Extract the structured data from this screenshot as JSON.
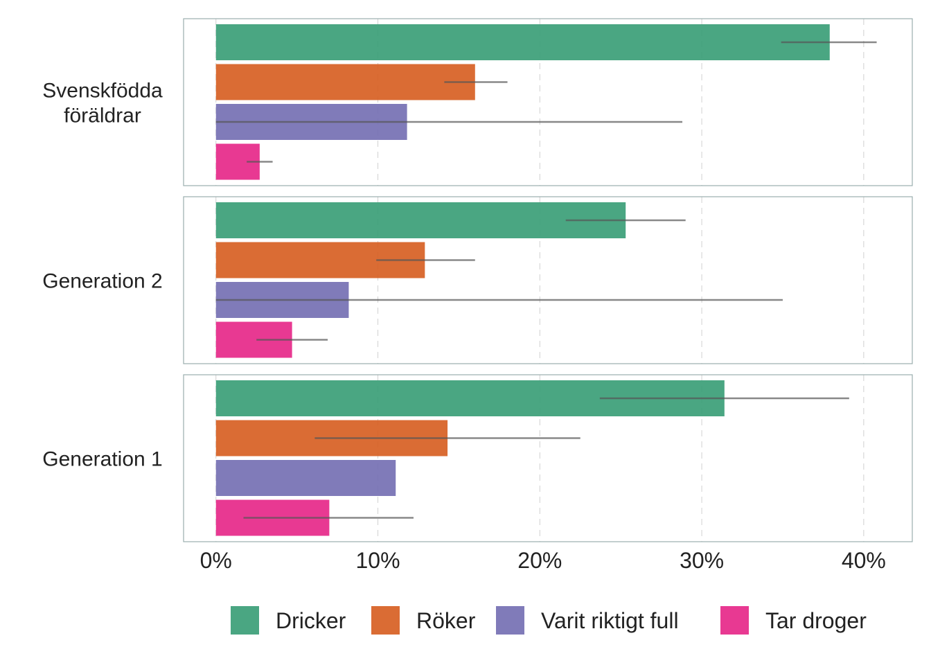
{
  "chart_data": {
    "type": "bar",
    "orientation": "horizontal",
    "facets": [
      {
        "label_lines": [
          "Svenskfödda",
          "föräldrar"
        ],
        "values": [
          37.9,
          16.0,
          11.8,
          2.7
        ],
        "err_low": [
          34.9,
          14.1,
          0.0,
          1.9
        ],
        "err_high": [
          40.8,
          18.0,
          28.8,
          3.5
        ]
      },
      {
        "label_lines": [
          "Generation 2"
        ],
        "values": [
          25.3,
          12.9,
          8.2,
          4.7
        ],
        "err_low": [
          21.6,
          9.9,
          0.0,
          2.5
        ],
        "err_high": [
          29.0,
          16.0,
          35.0,
          6.9
        ]
      },
      {
        "label_lines": [
          "Generation 1"
        ],
        "values": [
          31.4,
          14.3,
          11.1,
          7.0
        ],
        "err_low": [
          23.7,
          6.1,
          null,
          1.7
        ],
        "err_high": [
          39.1,
          22.5,
          null,
          12.2
        ]
      }
    ],
    "series": [
      {
        "name": "Dricker",
        "color": "#3b9e77"
      },
      {
        "name": "Röker",
        "color": "#d75f23"
      },
      {
        "name": "Varit riktigt full",
        "color": "#7570b3"
      },
      {
        "name": "Tar droger",
        "color": "#e62889"
      }
    ],
    "xlim": [
      -2,
      43
    ],
    "x_ticks": [
      0,
      10,
      20,
      30,
      40
    ],
    "x_tick_labels": [
      "0%",
      "10%",
      "20%",
      "30%",
      "40%"
    ],
    "grid": "vertical dashed",
    "legend_position": "bottom"
  }
}
